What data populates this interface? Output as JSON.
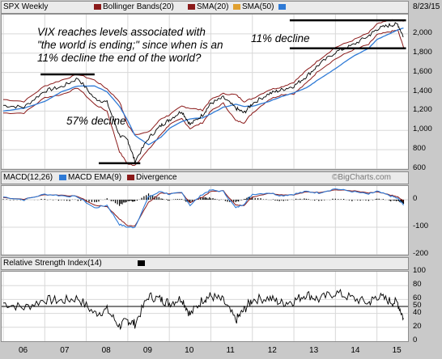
{
  "date_label": "8/23/15",
  "legends": {
    "price": [
      {
        "label": "SPX Weekly",
        "color": ""
      },
      {
        "label": "Bollinger Bands(20)",
        "color": "#8b1a1a"
      },
      {
        "label": "SMA(20)",
        "color": "#8b1a1a"
      },
      {
        "label": "SMA(50)",
        "color": "#e0a030"
      }
    ],
    "price_extra_swatch": "#2e7ad6",
    "macd": [
      {
        "label": "MACD(12,26)",
        "color": "#2e7ad6"
      },
      {
        "label": "MACD EMA(9)",
        "color": "#8b1a1a"
      },
      {
        "label": "Divergence",
        "color": ""
      }
    ],
    "rsi": [
      {
        "label": "Relative Strength Index(14)",
        "color": ""
      }
    ]
  },
  "watermark": "©BigCharts.com",
  "annotations": {
    "vix": [
      "VIX reaches levels associated with",
      "\"the world is ending;\" since when is an",
      "11% decline the end of the world?"
    ],
    "decline_57": "57% decline",
    "decline_11": "11% decline"
  },
  "colors": {
    "price": "#000000",
    "bollinger": "#8b1a1a",
    "sma": "#2e7ad6",
    "rsi": "#000000"
  },
  "chart_data": [
    {
      "type": "line",
      "title": "SPX Weekly",
      "x": [
        "2006",
        "2006.5",
        "2007",
        "2007.4",
        "2007.8",
        "2008.2",
        "2008.5",
        "2008.8",
        "2009.0",
        "2009.17",
        "2009.5",
        "2009.8",
        "2010",
        "2010.3",
        "2010.5",
        "2010.8",
        "2011",
        "2011.3",
        "2011.6",
        "2011.8",
        "2012",
        "2012.4",
        "2012.7",
        "2013",
        "2013.3",
        "2013.6",
        "2014",
        "2014.4",
        "2014.8",
        "2015",
        "2015.3",
        "2015.5",
        "2015.64"
      ],
      "series": [
        {
          "name": "SPX Weekly",
          "values": [
            1260,
            1240,
            1410,
            1450,
            1540,
            1330,
            1290,
            950,
            900,
            680,
            920,
            1050,
            1110,
            1200,
            1060,
            1160,
            1280,
            1340,
            1230,
            1180,
            1280,
            1380,
            1420,
            1460,
            1560,
            1680,
            1810,
            1880,
            1980,
            2050,
            2090,
            2100,
            1970
          ]
        },
        {
          "name": "SMA(50)",
          "values": [
            1200,
            1230,
            1300,
            1400,
            1460,
            1460,
            1400,
            1250,
            1100,
            950,
            850,
            930,
            1020,
            1090,
            1120,
            1130,
            1170,
            1240,
            1270,
            1250,
            1250,
            1300,
            1350,
            1390,
            1440,
            1530,
            1640,
            1760,
            1850,
            1940,
            2000,
            2040,
            2060
          ]
        }
      ],
      "bollinger": {
        "upper": [
          1320,
          1300,
          1460,
          1520,
          1580,
          1520,
          1430,
          1300,
          1050,
          960,
          980,
          1120,
          1160,
          1250,
          1230,
          1210,
          1320,
          1380,
          1370,
          1300,
          1330,
          1420,
          1450,
          1500,
          1620,
          1730,
          1860,
          1930,
          2010,
          2100,
          2140,
          2140,
          2130
        ],
        "lower": [
          1180,
          1180,
          1340,
          1370,
          1440,
          1270,
          1200,
          780,
          650,
          640,
          800,
          960,
          1060,
          1120,
          1020,
          1080,
          1200,
          1280,
          1100,
          1080,
          1180,
          1320,
          1370,
          1380,
          1490,
          1620,
          1740,
          1830,
          1890,
          1990,
          2020,
          2040,
          1860
        ]
      },
      "ylim": [
        600,
        2200
      ],
      "yticks": [
        600,
        800,
        1000,
        1200,
        1400,
        1600,
        1800,
        2000
      ]
    },
    {
      "type": "line",
      "title": "MACD(12,26)",
      "series": [
        {
          "name": "MACD(12,26)",
          "values": [
            10,
            0,
            20,
            15,
            10,
            -30,
            -20,
            -90,
            -100,
            -100,
            10,
            30,
            20,
            25,
            -20,
            20,
            35,
            30,
            -30,
            -15,
            20,
            25,
            15,
            20,
            30,
            25,
            40,
            30,
            20,
            30,
            15,
            5,
            -20
          ]
        },
        {
          "name": "MACD EMA(9)",
          "values": [
            8,
            2,
            18,
            17,
            12,
            -20,
            -25,
            -70,
            -95,
            -95,
            -10,
            25,
            22,
            24,
            -10,
            10,
            30,
            32,
            -20,
            -20,
            10,
            24,
            18,
            18,
            28,
            27,
            36,
            33,
            24,
            28,
            18,
            10,
            -5
          ]
        }
      ],
      "divergence": [
        2,
        -2,
        2,
        -2,
        -2,
        -10,
        5,
        -20,
        -5,
        -5,
        20,
        5,
        -2,
        1,
        -10,
        10,
        5,
        -2,
        -10,
        5,
        10,
        1,
        -3,
        2,
        2,
        -2,
        4,
        -3,
        -4,
        2,
        -3,
        -5,
        -15
      ],
      "ylim": [
        -200,
        50
      ],
      "yticks": [
        0,
        -100,
        -200
      ]
    },
    {
      "type": "line",
      "title": "Relative Strength Index(14)",
      "series": [
        {
          "name": "Relative Strength Index(14)",
          "values": [
            55,
            48,
            60,
            58,
            62,
            40,
            45,
            22,
            30,
            25,
            65,
            60,
            55,
            62,
            38,
            60,
            65,
            58,
            30,
            45,
            60,
            62,
            55,
            58,
            68,
            60,
            70,
            62,
            55,
            65,
            58,
            55,
            33
          ]
        }
      ],
      "ylim": [
        0,
        100
      ],
      "yticks": [
        100,
        80,
        60,
        50,
        40,
        20,
        0
      ],
      "reference_line": 50
    }
  ],
  "xaxis": [
    "06",
    "07",
    "08",
    "09",
    "10",
    "11",
    "12",
    "13",
    "14",
    "15"
  ]
}
